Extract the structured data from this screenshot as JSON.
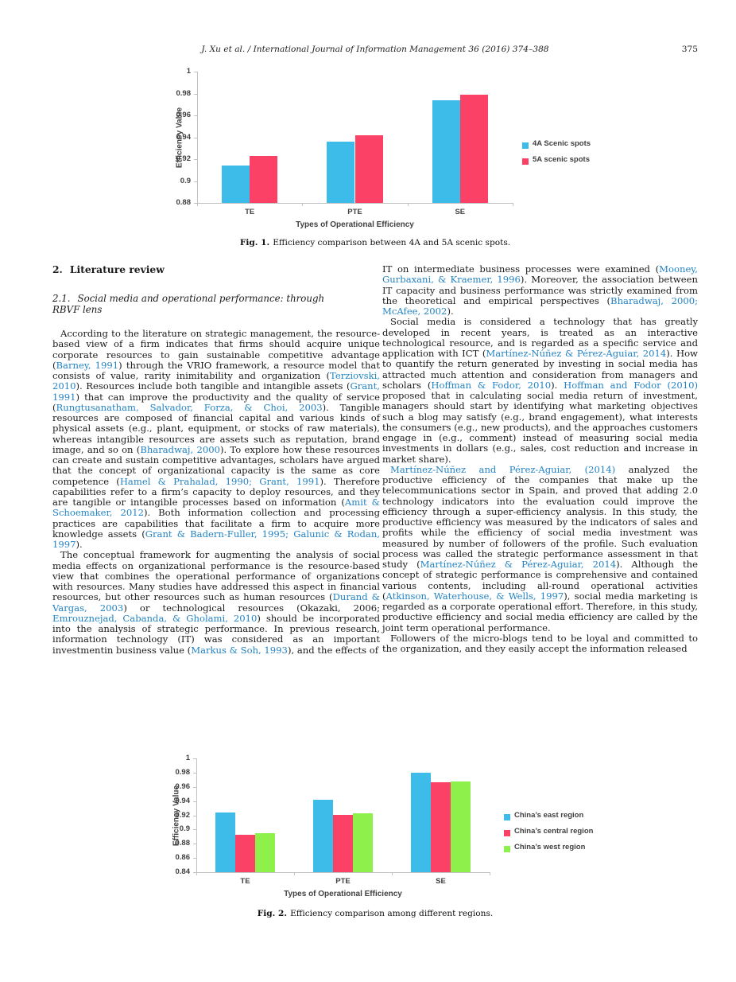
{
  "header": {
    "running_title": "J. Xu et al. / International Journal of Information Management 36 (2016) 374–388",
    "page_number": "375"
  },
  "section": {
    "number": "2.",
    "title": "Literature review",
    "sub_number": "2.1.",
    "sub_title": "Social media and operational performance: through RBVF lens"
  },
  "figures": [
    {
      "label": "Fig. 1.",
      "caption": "Efficiency comparison between 4A and 5A scenic spots."
    },
    {
      "label": "Fig. 2.",
      "caption": "Efficiency comparison among different regions."
    }
  ],
  "chart_data": [
    {
      "type": "bar",
      "title": "",
      "categories": [
        "TE",
        "PTE",
        "SE"
      ],
      "series": [
        {
          "name": "4A Scenic spots",
          "color": "#3EBCE9",
          "values": [
            0.914,
            0.936,
            0.974
          ]
        },
        {
          "name": "5A scenic spots",
          "color": "#FB4166",
          "values": [
            0.923,
            0.942,
            0.979
          ]
        }
      ],
      "xlabel": "Types of Operational Efficiency",
      "ylabel": "Efficiency Value",
      "ylim": [
        0.88,
        1.0
      ],
      "ytick_step": 0.02,
      "legend_position": "right",
      "grid": false
    },
    {
      "type": "bar",
      "title": "",
      "categories": [
        "TE",
        "PTE",
        "SE"
      ],
      "series": [
        {
          "name": "China’s east region",
          "color": "#3EBCE9",
          "values": [
            0.924,
            0.942,
            0.98
          ]
        },
        {
          "name": "China’s central region",
          "color": "#FB4166",
          "values": [
            0.893,
            0.921,
            0.966
          ]
        },
        {
          "name": "China’s west region",
          "color": "#8DF04B",
          "values": [
            0.895,
            0.923,
            0.968
          ]
        }
      ],
      "xlabel": "Types of Operational Efficiency",
      "ylabel": "Efficiency Value",
      "ylim": [
        0.84,
        1.0
      ],
      "ytick_step": 0.02,
      "legend_position": "right",
      "grid": false
    }
  ],
  "body": {
    "left_column": [
      {
        "indent": true,
        "segments": [
          "According to the literature on strategic management, the resource-based view of a firm indicates that firms should acquire unique corporate resources to gain sustainable competitive advantage (",
          {
            "cite": "Barney, 1991"
          },
          ") through the VRIO framework, a resource model that consists of value, rarity inimitability and organization (",
          {
            "cite": "Terziovski, 2010"
          },
          "). Resources include both tangible and intangible assets (",
          {
            "cite": "Grant, 1991"
          },
          ") that can improve the productivity and the quality of service (",
          {
            "cite": "Rungtusanatham, Salvador, Forza, & Choi, 2003"
          },
          "). Tangible resources are composed of financial capital and various kinds of physical assets (e.g., plant, equipment, or stocks of raw materials), whereas intangible resources are assets such as reputation, brand image, and so on (",
          {
            "cite": "Bharadwaj, 2000"
          },
          "). To explore how these resources can create and sustain competitive advantages, scholars have argued that the concept of organizational capacity is the same as core competence (",
          {
            "cite": "Hamel & Prahalad, 1990; Grant, 1991"
          },
          "). Therefore capabilities refer to a firm’s capacity to deploy resources, and they are tangible or intangible processes based on information (",
          {
            "cite": "Amit & Schoemaker, 2012"
          },
          "). Both information collection and processing practices are capabilities that facilitate a firm to acquire more knowledge assets (",
          {
            "cite": "Grant & Badern-Fuller, 1995; Galunic & Rodan, 1997"
          },
          ")."
        ]
      },
      {
        "indent": true,
        "segments": [
          "The conceptual framework for augmenting the analysis of social media effects on organizational performance is the resource-based view that combines the operational performance of organizations with resources. Many studies have addressed this aspect in financial resources, but other resources such as human resources (",
          {
            "cite": "Durand & Vargas, 2003"
          },
          ") or technological resources (Okazaki, 2006; ",
          {
            "cite": "Emrouznejad, Cabanda, & Gholami, 2010"
          },
          ") should be incorporated into the analysis of strategic performance. In previous research, information technology (IT) was considered as an important investmentin business value (",
          {
            "cite": "Markus & Soh, 1993"
          },
          "), and the effects of"
        ]
      }
    ],
    "right_column": [
      {
        "indent": false,
        "segments": [
          "IT on intermediate business processes were examined (",
          {
            "cite": "Mooney, Gurbaxani, & Kraemer, 1996"
          },
          "). Moreover, the association between IT capacity and business performance was strictly examined from the theoretical and empirical perspectives (",
          {
            "cite": "Bharadwaj, 2000; McAfee, 2002"
          },
          ")."
        ]
      },
      {
        "indent": true,
        "segments": [
          "Social media is considered a technology that has greatly developed in recent years, is treated as an interactive technological resource, and is regarded as a specific service and application with ICT (",
          {
            "cite": "Martínez-Núñez & Pérez-Aguiar, 2014"
          },
          "). How to quantify the return generated by investing in social media has attracted much attention and consideration from managers and scholars (",
          {
            "cite": "Hoffman & Fodor, 2010"
          },
          "). ",
          {
            "cite": "Hoffman and Fodor (2010)"
          },
          " proposed that in calculating social media return of investment, managers should start by identifying what marketing objectives such a blog may satisfy (e.g., brand engagement), what interests the consumers (e.g., new products), and the approaches customers engage in (e.g., comment) instead of measuring social media investments in dollars (e.g., sales, cost reduction and increase in market share)."
        ]
      },
      {
        "indent": true,
        "segments": [
          {
            "cite": "Martínez-Núñez and Pérez-Aguiar, (2014)"
          },
          " analyzed the productive efficiency of the companies that make up the telecommunications sector in Spain, and proved that adding 2.0 technology indicators into the evaluation could improve the efficiency through a super-efficiency analysis. In this study, the productive efficiency was measured by the indicators of sales and profits while the efficiency of social media investment was measured by number of followers of the profile. Such evaluation process was called the strategic performance assessment in that study (",
          {
            "cite": "Martínez-Núñez & Pérez-Aguiar, 2014"
          },
          "). Although the concept of strategic performance is comprehensive and contained various contents, including all-round operational activities (",
          {
            "cite": "Atkinson, Waterhouse, & Wells, 1997"
          },
          "), social media marketing is regarded as a corporate operational effort. Therefore, in this study, productive efficiency and social media efficiency are called by the joint term operational performance."
        ]
      },
      {
        "indent": true,
        "segments": [
          "Followers of the micro-blogs tend to be loyal and committed to the organization, and they easily accept the information released"
        ]
      }
    ]
  },
  "colors": {
    "citation_blue": "#2383C4",
    "series_blue": "#3EBCE9",
    "series_pink": "#FB4166",
    "series_green": "#8DF04B",
    "axis_gray": "#C2C2C2",
    "chart_text": "#404040"
  }
}
